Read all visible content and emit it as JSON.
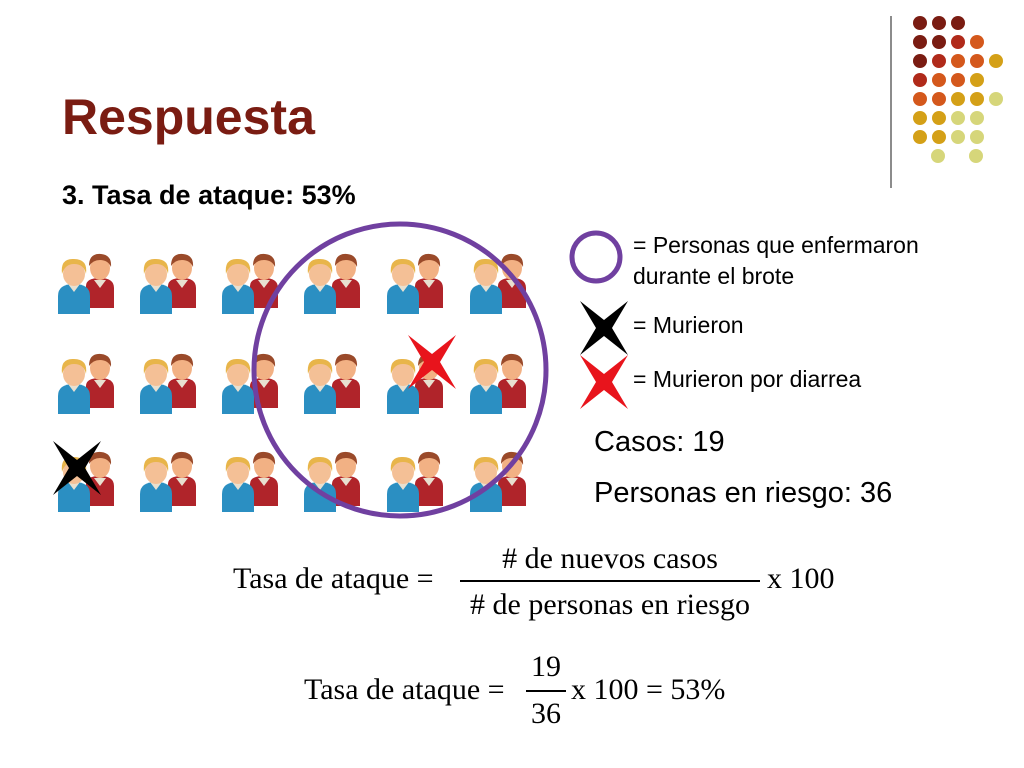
{
  "slide": {
    "title": "Respuesta",
    "subtitle": "3. Tasa de ataque: 53%"
  },
  "legend": {
    "circle_line1": "= Personas que enfermaron",
    "circle_line2": "durante el brote",
    "black_x": "= Murieron",
    "red_x": "= Murieron por diarrea"
  },
  "stats": {
    "cases": "Casos: 19",
    "at_risk": "Personas en riesgo: 36"
  },
  "formula1": {
    "lhs": "Tasa de ataque =",
    "numerator": "# de nuevos casos",
    "denominator": "# de personas en riesgo",
    "multiplier": "x 100"
  },
  "formula2": {
    "lhs": "Tasa de ataque =",
    "numerator": "19",
    "denominator": "36",
    "result": "x 100 = 53%"
  },
  "colors": {
    "title": "#7a1c12",
    "circle": "#7040a0",
    "red_x": "#e8141c",
    "black_x": "#000000"
  },
  "icons": {
    "person_pair": "people-pair-icon",
    "circle": "outbreak-circle-icon",
    "black_x": "black-x-icon",
    "red_x": "red-x-icon"
  }
}
